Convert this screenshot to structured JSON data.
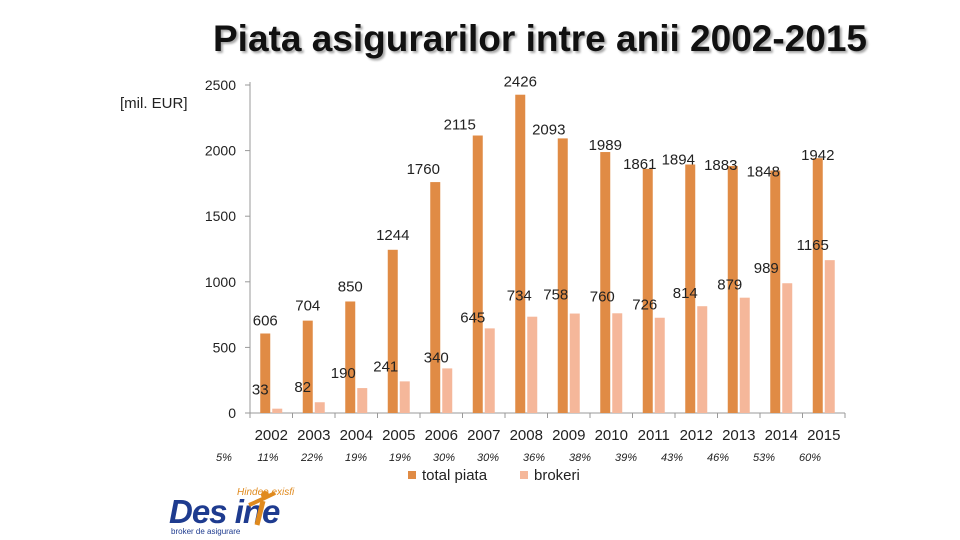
{
  "chart_data": {
    "type": "bar",
    "title": "Piata asigurarilor intre anii 2002-2015",
    "ylabel": "[mil. EUR]",
    "xlabel": "",
    "ylim": [
      0,
      2500
    ],
    "yticks": [
      0,
      500,
      1000,
      1500,
      2000,
      2500
    ],
    "categories": [
      "2002",
      "2003",
      "2004",
      "2005",
      "2006",
      "2007",
      "2008",
      "2009",
      "2010",
      "2011",
      "2012",
      "2013",
      "2014",
      "2015"
    ],
    "series": [
      {
        "name": "total piata",
        "color": "#e08b45",
        "values": [
          606,
          704,
          850,
          1244,
          1760,
          2115,
          2426,
          2093,
          1989,
          1861,
          1894,
          1883,
          1848,
          1942
        ]
      },
      {
        "name": "brokeri",
        "color": "#f5b79a",
        "values": [
          33,
          82,
          190,
          241,
          340,
          645,
          734,
          758,
          760,
          726,
          814,
          879,
          989,
          1165
        ]
      }
    ],
    "share_row": [
      "5%",
      "11%",
      "22%",
      "19%",
      "19%",
      "30%",
      "30%",
      "36%",
      "38%",
      "39%",
      "43%",
      "46%",
      "53%",
      "60%"
    ],
    "legend_position": "bottom"
  },
  "logo": {
    "word": "Des ine",
    "tagline": "Hindeo exisfi",
    "subtitle": "broker de asigurare"
  }
}
